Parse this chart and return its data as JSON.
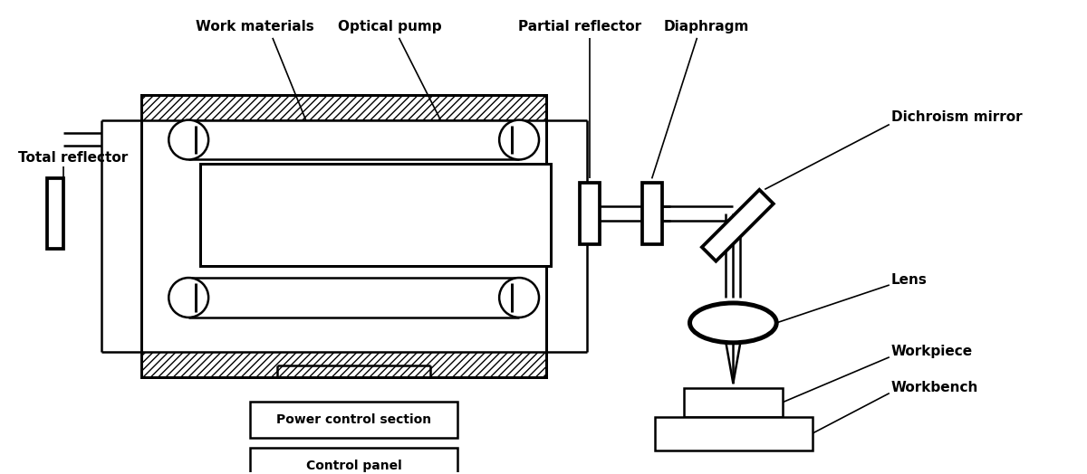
{
  "fig_width": 12.0,
  "fig_height": 5.24,
  "dpi": 100,
  "bg_color": "#ffffff",
  "line_color": "#000000",
  "lw": 1.8,
  "labels": {
    "work_materials": "Work materials",
    "optical_pump": "Optical pump",
    "total_reflector": "Total reflector",
    "partial_reflector": "Partial reflector",
    "diaphragm": "Diaphragm",
    "dichroism_mirror": "Dichroism mirror",
    "lens": "Lens",
    "workpiece": "Workpiece",
    "workbench": "Workbench",
    "power_control": "Power control section",
    "control_panel": "Control panel"
  },
  "fontsize": 11,
  "fontweight": "bold"
}
